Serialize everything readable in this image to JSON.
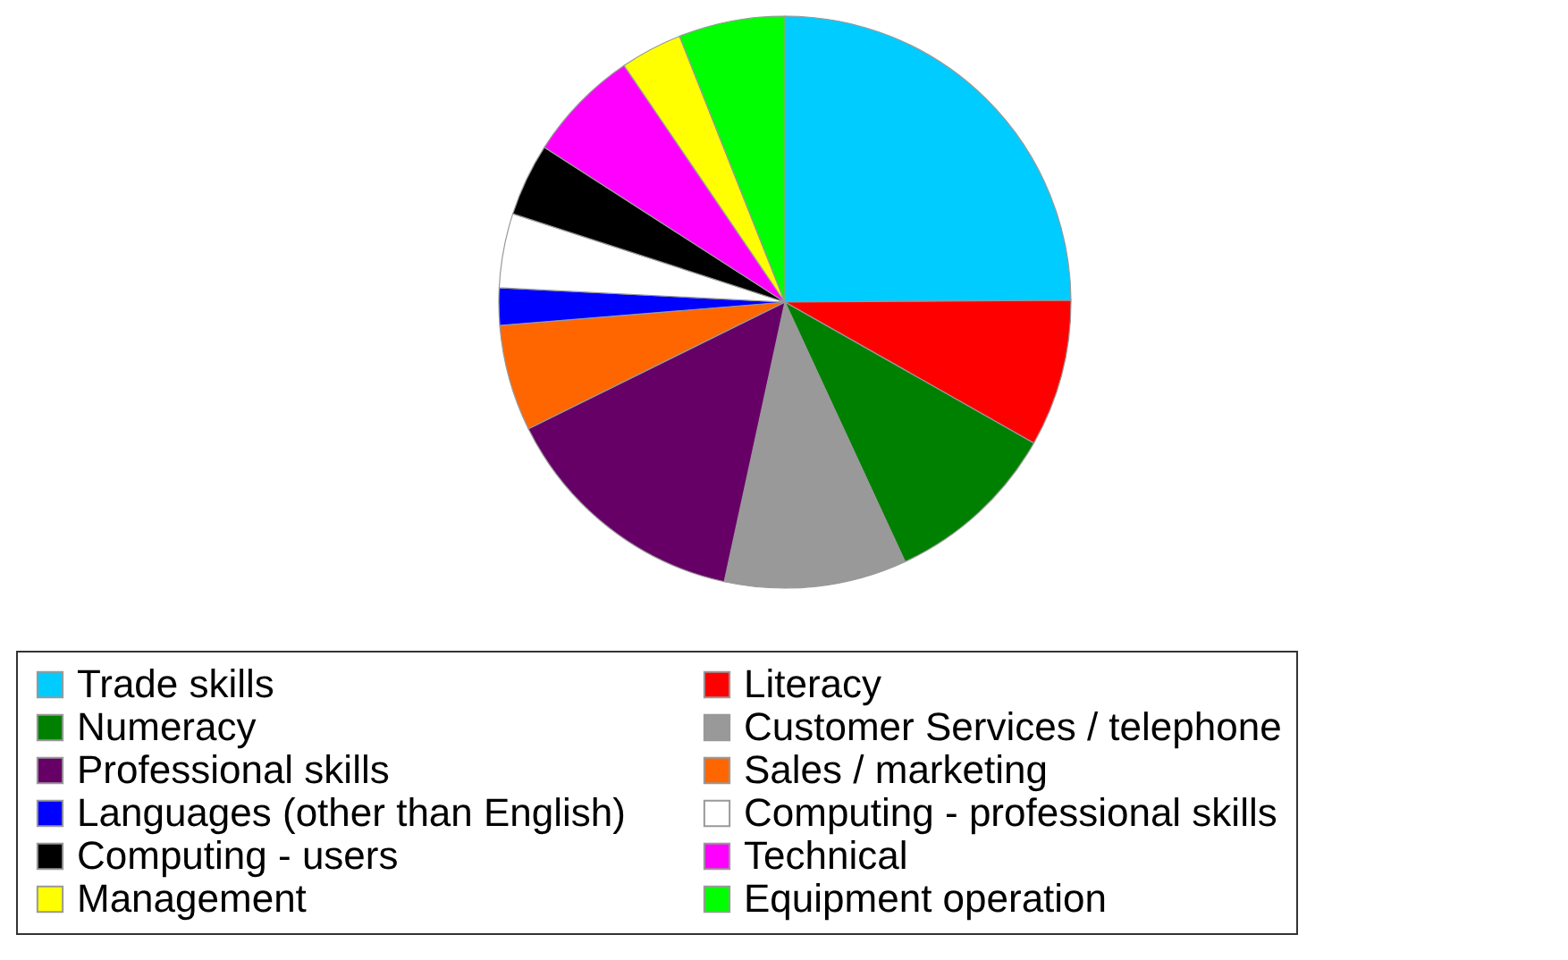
{
  "chart_data": {
    "type": "pie",
    "categories": [
      "Trade skills",
      "Literacy",
      "Numeracy",
      "Customer Services / telephone",
      "Professional skills",
      "Sales / marketing",
      "Languages (other than English)",
      "Computing - professional skills",
      "Computing - users",
      "Technical",
      "Management",
      "Equipment operation"
    ],
    "values": [
      24.9,
      8.3,
      9.9,
      10.3,
      14.3,
      6,
      2.1,
      4.2,
      4.1,
      6.4,
      3.5,
      6
    ],
    "colors": [
      "#00ccff",
      "#ff0000",
      "#008000",
      "#999999",
      "#660066",
      "#ff6600",
      "#0000ff",
      "#ffffff",
      "#000000",
      "#ff00ff",
      "#ffff00",
      "#00ff00"
    ],
    "legend": "bottom"
  }
}
